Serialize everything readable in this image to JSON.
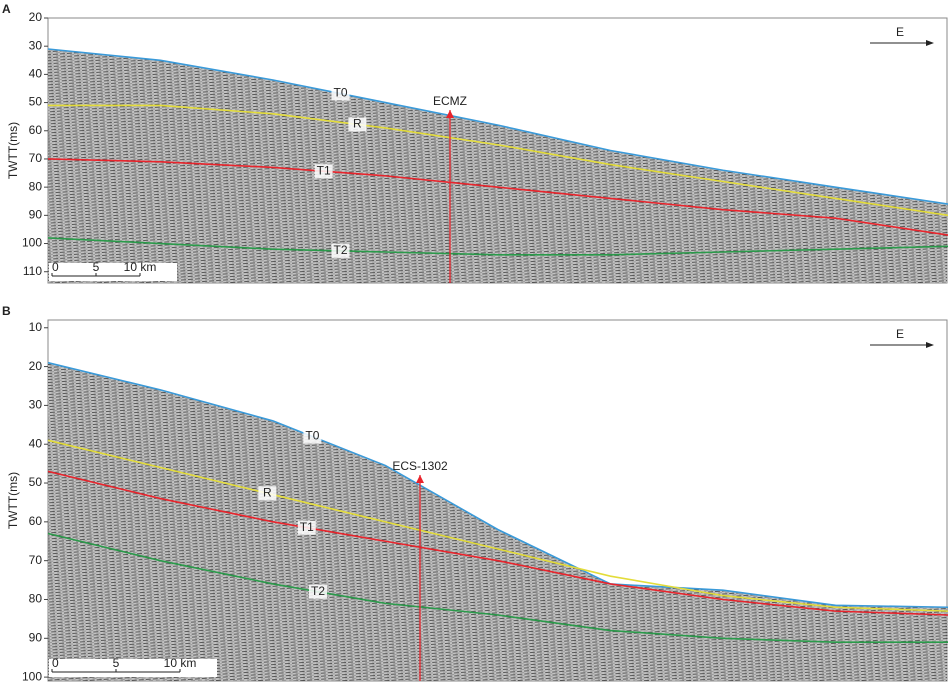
{
  "chart_data": [
    {
      "type": "line",
      "panel_label": "A",
      "y_label": "TWTT(ms)",
      "direction": "E",
      "marker_label": "ECMZ",
      "scale_bar_labels": [
        "0",
        "5",
        "10 km"
      ],
      "ylim": [
        20,
        114
      ],
      "yticks": [
        20,
        30,
        40,
        50,
        60,
        70,
        80,
        90,
        100,
        110
      ],
      "y_inverted": true,
      "categories": [
        null,
        null,
        null,
        null,
        null,
        null,
        null,
        null,
        null
      ],
      "series": [
        {
          "name": "T0",
          "color": "#3a9ad9",
          "values": [
            31,
            35,
            42,
            50,
            58,
            67,
            74,
            80,
            86
          ]
        },
        {
          "name": "R",
          "color": "#e3dc3a",
          "values": [
            51,
            51,
            54,
            59,
            65,
            72,
            78,
            84,
            90
          ]
        },
        {
          "name": "T1",
          "color": "#e8242c",
          "values": [
            70,
            71,
            73,
            76,
            80,
            84,
            88,
            91,
            97
          ]
        },
        {
          "name": "T2",
          "color": "#2a9a4a",
          "values": [
            98,
            100,
            102,
            103,
            104,
            104,
            103,
            102,
            101
          ]
        }
      ]
    },
    {
      "type": "line",
      "panel_label": "B",
      "y_label": "TWTT(ms)",
      "direction": "E",
      "marker_label": "ECS-1302",
      "scale_bar_labels": [
        "0",
        "5",
        "10 km"
      ],
      "ylim": [
        8,
        101
      ],
      "yticks": [
        10,
        20,
        30,
        40,
        50,
        60,
        70,
        80,
        90,
        100
      ],
      "y_inverted": true,
      "categories": [
        null,
        null,
        null,
        null,
        null,
        null,
        null,
        null,
        null
      ],
      "series": [
        {
          "name": "T0",
          "color": "#3a9ad9",
          "values": [
            19,
            26,
            34,
            45.5,
            62,
            76,
            77.6,
            81.5,
            82
          ]
        },
        {
          "name": "R",
          "color": "#e3dc3a",
          "values": [
            39,
            46,
            53,
            60,
            67,
            74,
            79,
            82,
            83
          ]
        },
        {
          "name": "T1",
          "color": "#e8242c",
          "values": [
            47,
            54,
            60,
            65,
            70,
            76,
            80,
            83,
            84
          ]
        },
        {
          "name": "T2",
          "color": "#2a9a4a",
          "values": [
            63,
            70,
            76,
            81,
            84,
            88,
            90,
            91,
            91
          ]
        }
      ]
    }
  ]
}
